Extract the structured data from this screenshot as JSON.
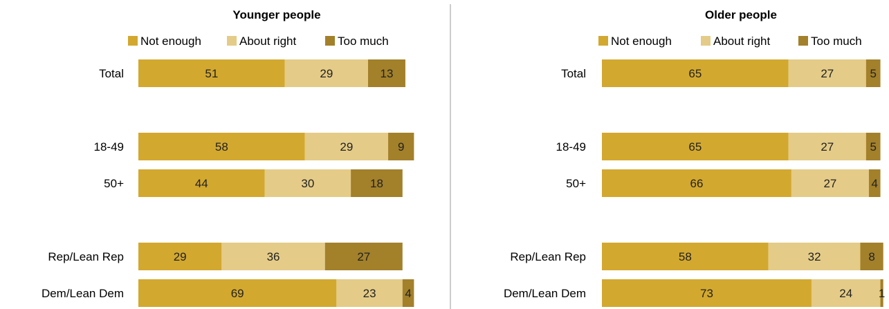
{
  "chart_data": [
    {
      "type": "bar",
      "orientation": "horizontal",
      "stacked": true,
      "title": "Younger people",
      "categories": [
        "Total",
        "18-49",
        "50+",
        "Rep/Lean Rep",
        "Dem/Lean Dem"
      ],
      "series": [
        {
          "name": "Not enough",
          "values": [
            51,
            58,
            44,
            29,
            69
          ]
        },
        {
          "name": "About right",
          "values": [
            29,
            29,
            30,
            36,
            23
          ]
        },
        {
          "name": "Too much",
          "values": [
            13,
            9,
            18,
            27,
            4
          ]
        }
      ],
      "legend": "top",
      "grid": false
    },
    {
      "type": "bar",
      "orientation": "horizontal",
      "stacked": true,
      "title": "Older people",
      "categories": [
        "Total",
        "18-49",
        "50+",
        "Rep/Lean Rep",
        "Dem/Lean Dem"
      ],
      "series": [
        {
          "name": "Not enough",
          "values": [
            65,
            65,
            66,
            58,
            73
          ]
        },
        {
          "name": "About right",
          "values": [
            27,
            27,
            27,
            32,
            24
          ]
        },
        {
          "name": "Too much",
          "values": [
            5,
            5,
            4,
            8,
            1
          ]
        }
      ],
      "legend": "top",
      "grid": false
    }
  ],
  "colors": {
    "not_enough": "#D3A82F",
    "about_right": "#E4CB87",
    "too_much": "#A3802A",
    "divider": "#9a9a9a"
  }
}
